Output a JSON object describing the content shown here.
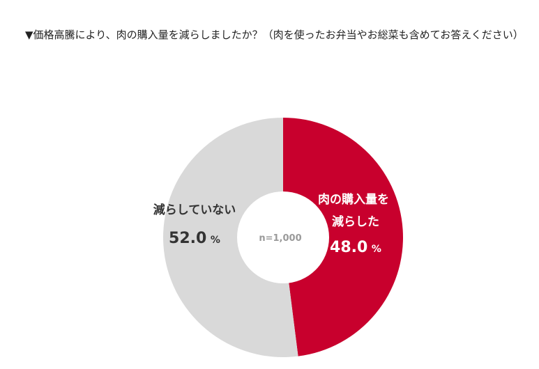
{
  "question": "▼価格高騰により、肉の購入量を減らしましたか？（肉を使ったお弁当やお総菜も含めてお答えください）",
  "colors": {
    "reduced": "#c8002d",
    "not_reduced": "#d9d9d9",
    "center": "#ffffff",
    "center_text": "#9a9a9a",
    "not_reduced_text": "#333333",
    "reduced_text": "#ffffff"
  },
  "chart_data": {
    "type": "pie",
    "donut": true,
    "center_label": "n=1,000",
    "slices": [
      {
        "label_lines": [
          "肉の購入量を",
          "減らした"
        ],
        "value": 48.0,
        "display": "48.0",
        "unit": "%"
      },
      {
        "label_lines": [
          "減らしていない"
        ],
        "value": 52.0,
        "display": "52.0",
        "unit": "%"
      }
    ]
  }
}
